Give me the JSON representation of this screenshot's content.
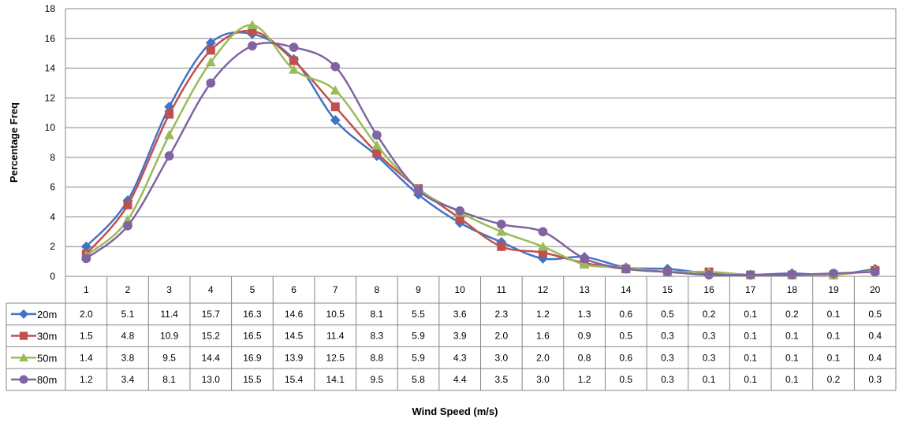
{
  "chart_data": {
    "type": "line",
    "xlabel": "Wind Speed (m/s)",
    "ylabel": "Percentage Freq",
    "ylim": [
      0,
      18
    ],
    "y_ticks": [
      "0",
      "2",
      "4",
      "6",
      "8",
      "10",
      "12",
      "14",
      "16",
      "18"
    ],
    "grid": "horizontal",
    "legend": "data table rows (left)",
    "categories": [
      "1",
      "2",
      "3",
      "4",
      "5",
      "6",
      "7",
      "8",
      "9",
      "10",
      "11",
      "12",
      "13",
      "14",
      "15",
      "16",
      "17",
      "18",
      "19",
      "20"
    ],
    "series": [
      {
        "name": "20m",
        "color": "#4472C4",
        "marker": "diamond",
        "values": [
          2.0,
          5.1,
          11.4,
          15.7,
          16.3,
          14.6,
          10.5,
          8.1,
          5.5,
          3.6,
          2.3,
          1.2,
          1.3,
          0.6,
          0.5,
          0.2,
          0.1,
          0.2,
          0.1,
          0.5
        ],
        "labels": [
          "2.0",
          "5.1",
          "11.4",
          "15.7",
          "16.3",
          "14.6",
          "10.5",
          "8.1",
          "5.5",
          "3.6",
          "2.3",
          "1.2",
          "1.3",
          "0.6",
          "0.5",
          "0.2",
          "0.1",
          "0.2",
          "0.1",
          "0.5"
        ]
      },
      {
        "name": "30m",
        "color": "#C0504D",
        "marker": "square",
        "values": [
          1.5,
          4.8,
          10.9,
          15.2,
          16.5,
          14.5,
          11.4,
          8.3,
          5.9,
          3.9,
          2.0,
          1.6,
          0.9,
          0.5,
          0.3,
          0.3,
          0.1,
          0.1,
          0.1,
          0.4
        ],
        "labels": [
          "1.5",
          "4.8",
          "10.9",
          "15.2",
          "16.5",
          "14.5",
          "11.4",
          "8.3",
          "5.9",
          "3.9",
          "2.0",
          "1.6",
          "0.9",
          "0.5",
          "0.3",
          "0.3",
          "0.1",
          "0.1",
          "0.1",
          "0.4"
        ]
      },
      {
        "name": "50m",
        "color": "#9BBB59",
        "marker": "triangle",
        "values": [
          1.4,
          3.8,
          9.5,
          14.4,
          16.9,
          13.9,
          12.5,
          8.8,
          5.9,
          4.3,
          3.0,
          2.0,
          0.8,
          0.6,
          0.3,
          0.3,
          0.1,
          0.1,
          0.1,
          0.4
        ],
        "labels": [
          "1.4",
          "3.8",
          "9.5",
          "14.4",
          "16.9",
          "13.9",
          "12.5",
          "8.8",
          "5.9",
          "4.3",
          "3.0",
          "2.0",
          "0.8",
          "0.6",
          "0.3",
          "0.3",
          "0.1",
          "0.1",
          "0.1",
          "0.4"
        ]
      },
      {
        "name": "80m",
        "color": "#8064A2",
        "marker": "circle",
        "values": [
          1.2,
          3.4,
          8.1,
          13.0,
          15.5,
          15.4,
          14.1,
          9.5,
          5.8,
          4.4,
          3.5,
          3.0,
          1.2,
          0.5,
          0.3,
          0.1,
          0.1,
          0.1,
          0.2,
          0.3
        ],
        "labels": [
          "1.2",
          "3.4",
          "8.1",
          "13.0",
          "15.5",
          "15.4",
          "14.1",
          "9.5",
          "5.8",
          "4.4",
          "3.5",
          "3.0",
          "1.2",
          "0.5",
          "0.3",
          "0.1",
          "0.1",
          "0.1",
          "0.2",
          "0.3"
        ]
      }
    ]
  }
}
